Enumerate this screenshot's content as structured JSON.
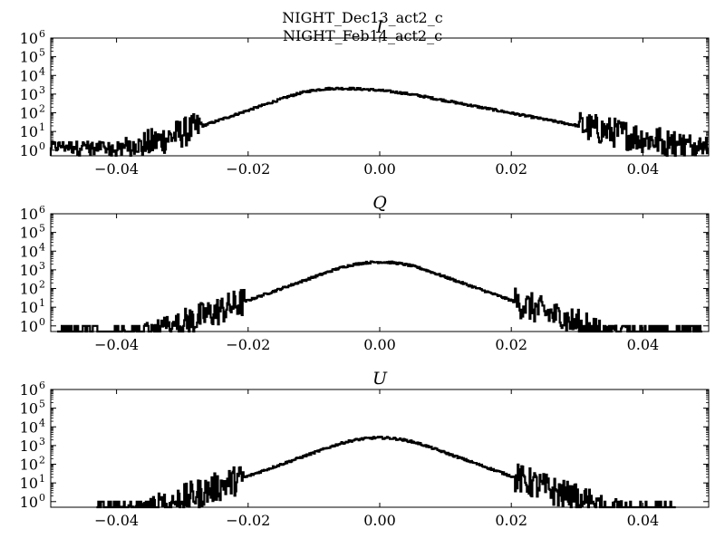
{
  "figure_titles": [
    "NIGHT_Dec13_act2_c",
    "NIGHT_Feb14_act2_c"
  ],
  "chart_data": [
    {
      "type": "histogram",
      "title": "I",
      "xlim": [
        -0.05,
        0.05
      ],
      "ylim": [
        0.5,
        1000000
      ],
      "yscale": "log",
      "xticks": [
        -0.04,
        -0.02,
        0.0,
        0.02,
        0.04
      ],
      "xtick_labels": [
        "−0.04",
        "−0.02",
        "0.00",
        "0.02",
        "0.04"
      ],
      "yticks": [
        1,
        10,
        100,
        1000,
        10000,
        100000,
        1000000
      ],
      "ytick_labels": [
        "10",
        "10",
        "10",
        "10",
        "10",
        "10",
        "10"
      ],
      "ytick_exponents": [
        "0",
        "1",
        "2",
        "3",
        "4",
        "5",
        "6"
      ],
      "grid": false,
      "series": [
        {
          "color": "#000000",
          "shape": {
            "peak_x": -0.0065,
            "peak_count": 2000,
            "sigma_inner": 0.0075,
            "sigma_outer": 0.0135,
            "support": [
              -0.05,
              0.05
            ],
            "floor": 0.8
          }
        }
      ]
    },
    {
      "type": "histogram",
      "title": "Q",
      "xlim": [
        -0.05,
        0.05
      ],
      "ylim": [
        0.5,
        1000000
      ],
      "yscale": "log",
      "xticks": [
        -0.04,
        -0.02,
        0.0,
        0.02,
        0.04
      ],
      "xtick_labels": [
        "−0.04",
        "−0.02",
        "0.00",
        "0.02",
        "0.04"
      ],
      "yticks": [
        1,
        10,
        100,
        1000,
        10000,
        100000,
        1000000
      ],
      "ytick_labels": [
        "10",
        "10",
        "10",
        "10",
        "10",
        "10",
        "10"
      ],
      "ytick_exponents": [
        "0",
        "1",
        "2",
        "3",
        "4",
        "5",
        "6"
      ],
      "grid": false,
      "series": [
        {
          "color": "#000000",
          "shape": {
            "peak_x": 0.0,
            "peak_count": 2600,
            "sigma_inner": 0.0072,
            "sigma_outer": 0.0072,
            "support": [
              -0.049,
              0.049
            ],
            "floor": 0
          }
        }
      ]
    },
    {
      "type": "histogram",
      "title": "U",
      "xlim": [
        -0.05,
        0.05
      ],
      "ylim": [
        0.5,
        1000000
      ],
      "yscale": "log",
      "xticks": [
        -0.04,
        -0.02,
        0.0,
        0.02,
        0.04
      ],
      "xtick_labels": [
        "−0.04",
        "−0.02",
        "0.00",
        "0.02",
        "0.04"
      ],
      "yticks": [
        1,
        10,
        100,
        1000,
        10000,
        100000,
        1000000
      ],
      "ytick_labels": [
        "10",
        "10",
        "10",
        "10",
        "10",
        "10",
        "10"
      ],
      "ytick_exponents": [
        "0",
        "1",
        "2",
        "3",
        "4",
        "5",
        "6"
      ],
      "grid": false,
      "series": [
        {
          "color": "#000000",
          "shape": {
            "peak_x": 0.0,
            "peak_count": 2600,
            "sigma_inner": 0.0072,
            "sigma_outer": 0.0072,
            "support": [
              -0.043,
              0.045
            ],
            "floor": 0
          }
        }
      ]
    }
  ]
}
